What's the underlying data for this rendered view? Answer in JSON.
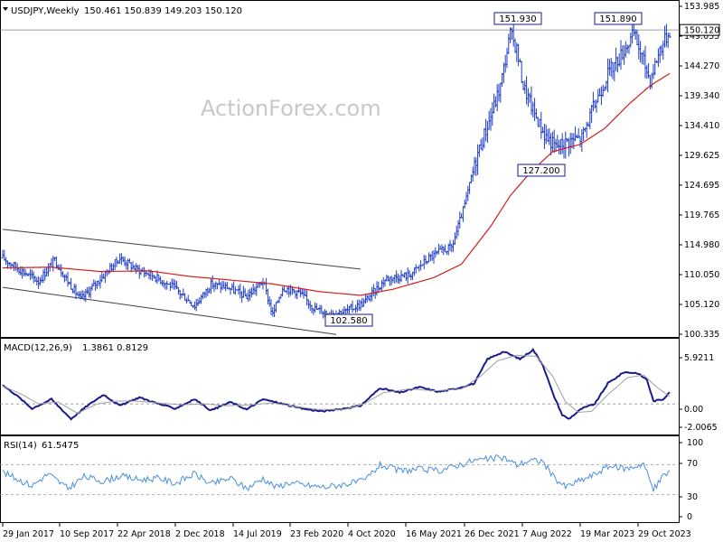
{
  "chart_data": [
    {
      "type": "ohlc",
      "header": "USDJPY,Weekly",
      "ohlc_text": "150.461 150.839 149.203 150.120",
      "watermark": "ActionForex.com",
      "ylim": [
        100.335,
        153.985
      ],
      "y_ticks": [
        "153.985",
        "149.055",
        "144.270",
        "139.340",
        "134.410",
        "129.625",
        "124.695",
        "119.765",
        "114.980",
        "110.050",
        "105.120",
        "100.335"
      ],
      "current_price": "150.120",
      "colors": {
        "bars": "#1e3cc8",
        "ma": "#d21e1e",
        "channel": "#404040",
        "annotation": "#ffffff",
        "current_line": "#808080"
      },
      "annotations": [
        "151.930",
        "151.890",
        "127.200",
        "102.580"
      ],
      "x_labels": [
        "29 Jan 2017",
        "10 Sep 2017",
        "22 Apr 2018",
        "2 Dec 2018",
        "14 Jul 2019",
        "23 Feb 2020",
        "4 Oct 2020",
        "16 May 2021",
        "26 Dec 2021",
        "7 Aug 2022",
        "19 Mar 2023",
        "29 Oct 2023"
      ],
      "close_keypoints": [
        [
          0,
          112.8
        ],
        [
          10,
          111
        ],
        [
          22,
          109
        ],
        [
          32,
          112.5
        ],
        [
          40,
          109
        ],
        [
          48,
          106
        ],
        [
          62,
          110
        ],
        [
          72,
          112.8
        ],
        [
          82,
          111
        ],
        [
          92,
          110
        ],
        [
          105,
          108
        ],
        [
          118,
          105
        ],
        [
          128,
          108.5
        ],
        [
          138,
          108
        ],
        [
          150,
          106.5
        ],
        [
          160,
          109
        ],
        [
          166,
          103.5
        ],
        [
          172,
          108
        ],
        [
          182,
          107.2
        ],
        [
          192,
          104.5
        ],
        [
          200,
          103.8
        ],
        [
          210,
          104
        ],
        [
          222,
          105.5
        ],
        [
          236,
          109.5
        ],
        [
          250,
          110
        ],
        [
          262,
          112.8
        ],
        [
          270,
          114
        ],
        [
          276,
          114.5
        ],
        [
          284,
          121.5
        ],
        [
          292,
          130
        ],
        [
          300,
          136
        ],
        [
          306,
          141
        ],
        [
          312,
          149.5
        ],
        [
          316,
          147
        ],
        [
          320,
          141
        ],
        [
          326,
          137
        ],
        [
          333,
          133
        ],
        [
          340,
          131
        ],
        [
          348,
          132
        ],
        [
          356,
          132.5
        ],
        [
          364,
          138
        ],
        [
          372,
          143
        ],
        [
          380,
          146
        ],
        [
          388,
          149.5
        ],
        [
          394,
          145
        ],
        [
          398,
          142
        ],
        [
          404,
          147
        ],
        [
          410,
          150
        ]
      ],
      "ma_keypoints": [
        [
          0,
          111.2
        ],
        [
          30,
          111.3
        ],
        [
          60,
          110.6
        ],
        [
          90,
          110.7
        ],
        [
          115,
          109.8
        ],
        [
          140,
          109.2
        ],
        [
          165,
          108.6
        ],
        [
          195,
          107.3
        ],
        [
          220,
          106.7
        ],
        [
          240,
          107.7
        ],
        [
          265,
          109.6
        ],
        [
          282,
          111.8
        ],
        [
          300,
          118
        ],
        [
          312,
          123
        ],
        [
          325,
          127
        ],
        [
          338,
          130.2
        ],
        [
          355,
          131.4
        ],
        [
          370,
          134
        ],
        [
          385,
          138
        ],
        [
          398,
          141
        ],
        [
          410,
          143
        ]
      ],
      "channel_lines": [
        {
          "name": "upper",
          "from": [
            0,
            117.5
          ],
          "to": [
            220,
            111
          ]
        },
        {
          "name": "lower",
          "from": [
            0,
            108
          ],
          "to": [
            205,
            100.3
          ]
        }
      ]
    },
    {
      "type": "line",
      "header": "MACD(12,26,9)",
      "values_text": "1.3861 0.8129",
      "ylim": [
        -2.6,
        6.2
      ],
      "y_ticks": [
        "5.9211",
        "0.00",
        "-2.0065"
      ],
      "series": [
        {
          "name": "MACD",
          "color": "#1a1a8c",
          "keypoints": [
            [
              0,
              2
            ],
            [
              8,
              1
            ],
            [
              18,
              -0.5
            ],
            [
              30,
              0.5
            ],
            [
              42,
              -1.6
            ],
            [
              52,
              -0.2
            ],
            [
              62,
              1
            ],
            [
              72,
              -0.2
            ],
            [
              84,
              0.7
            ],
            [
              96,
              0
            ],
            [
              106,
              -0.5
            ],
            [
              118,
              0.5
            ],
            [
              128,
              -0.7
            ],
            [
              140,
              0.2
            ],
            [
              150,
              -0.6
            ],
            [
              160,
              0.5
            ],
            [
              172,
              0
            ],
            [
              184,
              -0.5
            ],
            [
              196,
              -0.8
            ],
            [
              206,
              -0.6
            ],
            [
              220,
              -0.2
            ],
            [
              232,
              1.7
            ],
            [
              244,
              1.2
            ],
            [
              256,
              1.8
            ],
            [
              268,
              1.3
            ],
            [
              278,
              1.6
            ],
            [
              290,
              2.2
            ],
            [
              298,
              4.8
            ],
            [
              308,
              5.6
            ],
            [
              318,
              4.8
            ],
            [
              326,
              5.8
            ],
            [
              332,
              4.2
            ],
            [
              338,
              1.2
            ],
            [
              344,
              -1.2
            ],
            [
              348,
              -1.6
            ],
            [
              356,
              -0.5
            ],
            [
              364,
              0
            ],
            [
              372,
              2.2
            ],
            [
              382,
              3.4
            ],
            [
              390,
              3.3
            ],
            [
              396,
              2.6
            ],
            [
              400,
              0.3
            ],
            [
              406,
              0.5
            ],
            [
              410,
              1.3
            ]
          ]
        },
        {
          "name": "Signal",
          "color": "#a0a0a0",
          "keypoints": [
            [
              0,
              1.9
            ],
            [
              12,
              1
            ],
            [
              22,
              0
            ],
            [
              34,
              0.2
            ],
            [
              46,
              -1
            ],
            [
              58,
              0
            ],
            [
              70,
              0.3
            ],
            [
              82,
              0.3
            ],
            [
              96,
              0.1
            ],
            [
              110,
              -0.1
            ],
            [
              124,
              0
            ],
            [
              138,
              -0.2
            ],
            [
              152,
              -0.1
            ],
            [
              166,
              0.1
            ],
            [
              180,
              -0.3
            ],
            [
              194,
              -0.6
            ],
            [
              210,
              -0.6
            ],
            [
              222,
              0
            ],
            [
              234,
              1.2
            ],
            [
              250,
              1.6
            ],
            [
              266,
              1.4
            ],
            [
              282,
              1.6
            ],
            [
              294,
              3
            ],
            [
              304,
              4.6
            ],
            [
              316,
              5.2
            ],
            [
              328,
              5.1
            ],
            [
              338,
              3
            ],
            [
              346,
              0.2
            ],
            [
              354,
              -0.9
            ],
            [
              362,
              -0.8
            ],
            [
              372,
              1
            ],
            [
              384,
              2.8
            ],
            [
              394,
              3.1
            ],
            [
              402,
              1.8
            ],
            [
              410,
              0.8
            ]
          ]
        }
      ]
    },
    {
      "type": "line",
      "header": "RSI(14)",
      "values_text": "61.5475",
      "ylim": [
        0,
        100
      ],
      "y_ticks": [
        "100",
        "70",
        "30",
        "0"
      ],
      "series": [
        {
          "name": "RSI",
          "color": "#4a8fdc",
          "keypoints": [
            [
              0,
              60
            ],
            [
              8,
              52
            ],
            [
              18,
              42
            ],
            [
              28,
              58
            ],
            [
              40,
              38
            ],
            [
              50,
              54
            ],
            [
              62,
              48
            ],
            [
              72,
              55
            ],
            [
              84,
              50
            ],
            [
              96,
              52
            ],
            [
              106,
              45
            ],
            [
              118,
              58
            ],
            [
              128,
              44
            ],
            [
              140,
              52
            ],
            [
              150,
              38
            ],
            [
              160,
              52
            ],
            [
              168,
              40
            ],
            [
              176,
              46
            ],
            [
              188,
              42
            ],
            [
              198,
              40
            ],
            [
              210,
              44
            ],
            [
              222,
              48
            ],
            [
              232,
              70
            ],
            [
              244,
              62
            ],
            [
              256,
              64
            ],
            [
              268,
              62
            ],
            [
              280,
              70
            ],
            [
              290,
              76
            ],
            [
              300,
              78
            ],
            [
              308,
              80
            ],
            [
              316,
              70
            ],
            [
              324,
              76
            ],
            [
              332,
              75
            ],
            [
              338,
              55
            ],
            [
              346,
              40
            ],
            [
              354,
              48
            ],
            [
              362,
              55
            ],
            [
              372,
              68
            ],
            [
              384,
              65
            ],
            [
              394,
              72
            ],
            [
              400,
              36
            ],
            [
              406,
              55
            ],
            [
              410,
              61.5
            ]
          ]
        }
      ]
    }
  ]
}
